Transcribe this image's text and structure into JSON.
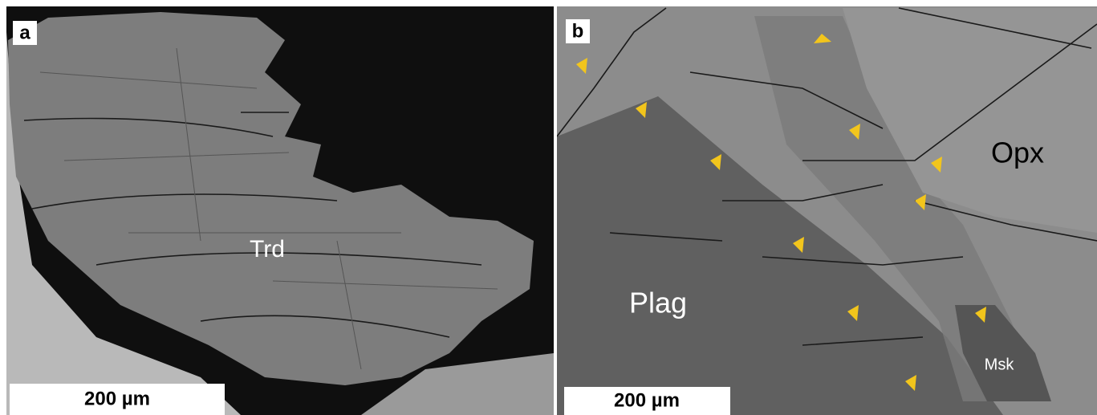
{
  "panels": [
    {
      "letter": "a",
      "labels": [
        "Trd"
      ],
      "scale_bar": "200 µm"
    },
    {
      "letter": "b",
      "labels": [
        "Opx",
        "Plag",
        "Msk"
      ],
      "scale_bar": "200 µm"
    }
  ]
}
